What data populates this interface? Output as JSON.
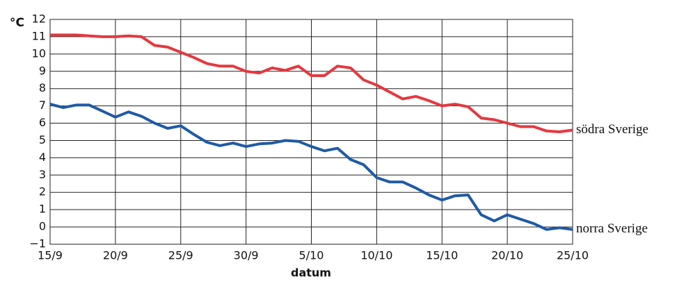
{
  "chart_data": {
    "type": "line",
    "y_label": "°C",
    "x_label": "datum",
    "categories": [
      "15/9",
      null,
      null,
      null,
      null,
      "20/9",
      null,
      null,
      null,
      null,
      "25/9",
      null,
      null,
      null,
      null,
      "30/9",
      null,
      null,
      null,
      null,
      "5/10",
      null,
      null,
      null,
      null,
      "10/10",
      null,
      null,
      null,
      null,
      "15/10",
      null,
      null,
      null,
      null,
      "20/10",
      null,
      null,
      null,
      null,
      "25/10"
    ],
    "series": [
      {
        "name": "södra Sverige",
        "color": "#e5383f",
        "values": [
          11.1,
          11.1,
          11.1,
          11.05,
          11.0,
          11.0,
          11.05,
          11.0,
          10.5,
          10.4,
          10.1,
          9.8,
          9.45,
          9.3,
          9.3,
          9.0,
          8.9,
          9.2,
          9.05,
          9.3,
          8.75,
          8.75,
          9.3,
          9.2,
          8.5,
          8.2,
          7.8,
          7.4,
          7.55,
          7.3,
          7.0,
          7.1,
          6.95,
          6.3,
          6.2,
          6.0,
          5.8,
          5.8,
          5.55,
          5.5,
          5.6
        ]
      },
      {
        "name": "norra Sverige",
        "color": "#1f5aa6",
        "values": [
          7.1,
          6.9,
          7.05,
          7.05,
          6.7,
          6.35,
          6.65,
          6.4,
          6.0,
          5.7,
          5.85,
          5.35,
          4.9,
          4.7,
          4.85,
          4.65,
          4.8,
          4.85,
          5.0,
          4.95,
          4.65,
          4.4,
          4.55,
          3.9,
          3.6,
          2.85,
          2.6,
          2.6,
          2.25,
          1.85,
          1.55,
          1.8,
          1.85,
          0.7,
          0.35,
          0.7,
          0.45,
          0.2,
          -0.15,
          -0.05,
          -0.15
        ]
      }
    ],
    "ylim": [
      -1,
      12
    ],
    "yticks": [
      {
        "value": -1,
        "label": "−1"
      },
      0,
      1,
      2,
      3,
      4,
      5,
      6,
      7,
      8,
      9,
      10,
      11,
      12
    ],
    "grid": true
  }
}
